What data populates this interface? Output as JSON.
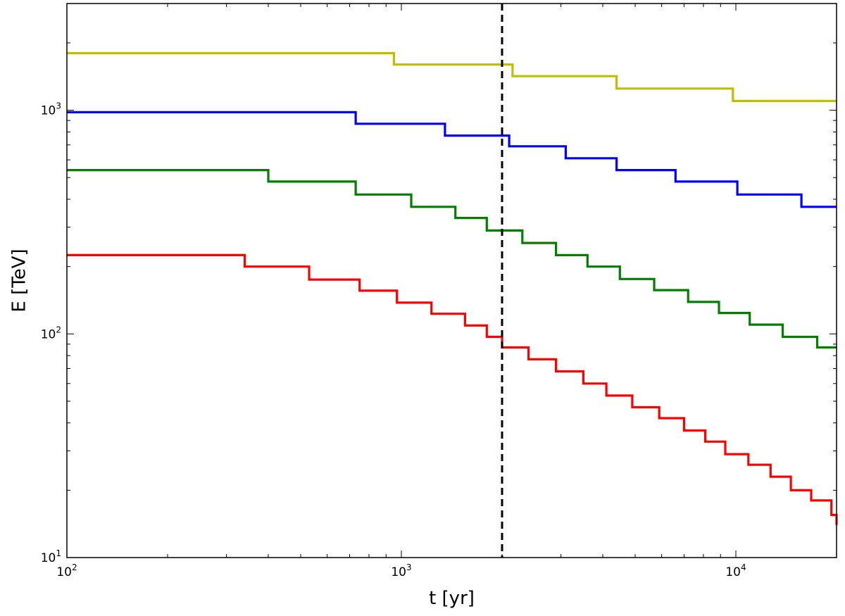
{
  "chart_data": {
    "type": "line",
    "title": "",
    "xlabel": "t [yr]",
    "ylabel": "E [TeV]",
    "xscale": "log",
    "yscale": "log",
    "xlim": [
      100,
      20000
    ],
    "ylim": [
      10,
      3000
    ],
    "grid": false,
    "legend": "none",
    "x_ticks": [
      {
        "base": "10",
        "exp": "2",
        "value": 100
      },
      {
        "base": "10",
        "exp": "3",
        "value": 1000
      },
      {
        "base": "10",
        "exp": "4",
        "value": 10000
      }
    ],
    "y_ticks": [
      {
        "base": "10",
        "exp": "1",
        "value": 10
      },
      {
        "base": "10",
        "exp": "2",
        "value": 100
      },
      {
        "base": "10",
        "exp": "3",
        "value": 1000
      }
    ],
    "vline": {
      "x": 2000,
      "color": "#000000",
      "style": "dashed"
    },
    "series": [
      {
        "color": "#bfbf00",
        "steps": [
          [
            100,
            1800
          ],
          [
            950,
            1600
          ],
          [
            2150,
            1420
          ],
          [
            4400,
            1250
          ],
          [
            9800,
            1100
          ],
          [
            20000,
            1100
          ]
        ]
      },
      {
        "color": "#0000ff",
        "steps": [
          [
            100,
            980
          ],
          [
            730,
            870
          ],
          [
            1350,
            770
          ],
          [
            2100,
            690
          ],
          [
            3100,
            610
          ],
          [
            4400,
            540
          ],
          [
            6600,
            480
          ],
          [
            10100,
            420
          ],
          [
            15700,
            370
          ],
          [
            20000,
            370
          ]
        ]
      },
      {
        "color": "#007f00",
        "steps": [
          [
            100,
            540
          ],
          [
            400,
            480
          ],
          [
            730,
            420
          ],
          [
            1070,
            370
          ],
          [
            1450,
            330
          ],
          [
            1800,
            290
          ],
          [
            2300,
            255
          ],
          [
            2900,
            225
          ],
          [
            3600,
            200
          ],
          [
            4500,
            176
          ],
          [
            5700,
            157
          ],
          [
            7200,
            139
          ],
          [
            8900,
            124
          ],
          [
            11000,
            110
          ],
          [
            13800,
            97
          ],
          [
            17500,
            87
          ],
          [
            20000,
            87
          ]
        ]
      },
      {
        "color": "#ff0000",
        "steps": [
          [
            100,
            225
          ],
          [
            340,
            200
          ],
          [
            530,
            175
          ],
          [
            750,
            156
          ],
          [
            970,
            138
          ],
          [
            1230,
            123
          ],
          [
            1550,
            109
          ],
          [
            1800,
            97
          ],
          [
            2000,
            87
          ],
          [
            2400,
            77
          ],
          [
            2900,
            68
          ],
          [
            3500,
            60
          ],
          [
            4100,
            53
          ],
          [
            4900,
            47
          ],
          [
            5900,
            42
          ],
          [
            7000,
            37
          ],
          [
            8100,
            33
          ],
          [
            9300,
            29
          ],
          [
            10900,
            26
          ],
          [
            12700,
            23
          ],
          [
            14600,
            20
          ],
          [
            16800,
            18
          ],
          [
            19300,
            15.5
          ],
          [
            20000,
            14
          ]
        ]
      }
    ]
  }
}
